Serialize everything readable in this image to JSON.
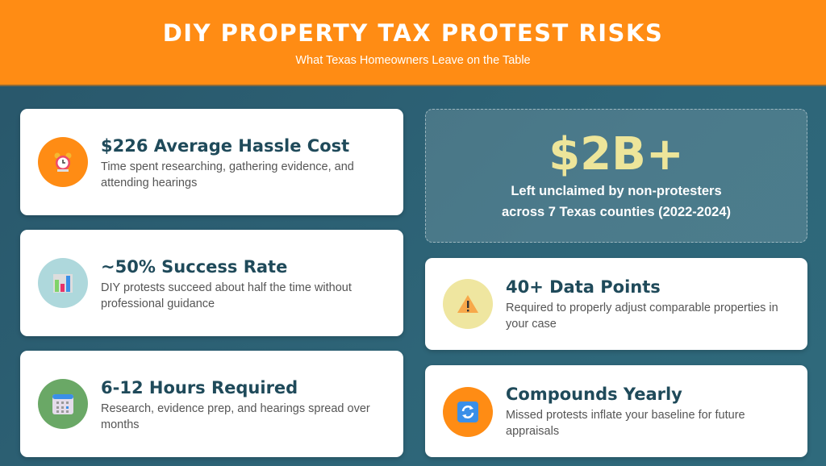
{
  "header": {
    "title": "DIY PROPERTY TAX PROTEST RISKS",
    "subtitle": "What Texas Homeowners Leave on the Table"
  },
  "cards": [
    {
      "title": "$226 Average Hassle Cost",
      "desc": "Time spent researching, gathering evidence, and attending hearings",
      "icon": "alarm-clock-icon",
      "color": "#ff8c14"
    },
    {
      "title": "~50% Success Rate",
      "desc": "DIY protests succeed about half the time without professional guidance",
      "icon": "bar-chart-icon",
      "color": "#aed8dc"
    },
    {
      "title": "6-12 Hours Required",
      "desc": "Research, evidence prep, and hearings spread over months",
      "icon": "calendar-icon",
      "color": "#6aa866"
    },
    {
      "title": "40+ Data Points",
      "desc": "Required to properly adjust comparable properties in your case",
      "icon": "warning-icon",
      "color": "#efe6a0"
    },
    {
      "title": "Compounds Yearly",
      "desc": "Missed protests inflate your baseline for future appraisals",
      "icon": "refresh-icon",
      "color": "#ff8c14"
    }
  ],
  "highlight": {
    "value": "$2B+",
    "line1": "Left unclaimed by non-protesters",
    "line2": "across 7 Texas counties (2022-2024)"
  }
}
